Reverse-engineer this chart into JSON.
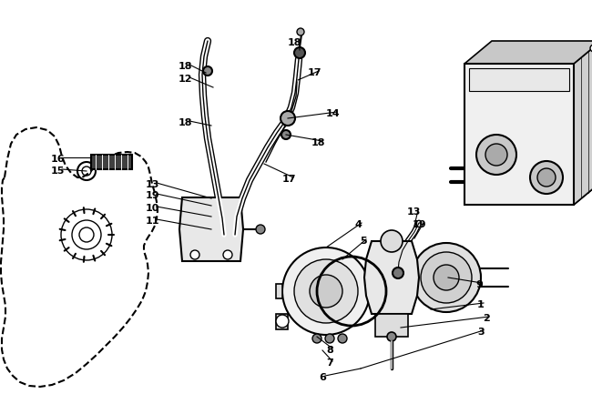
{
  "bg_color": "#ffffff",
  "line_color": "#000000",
  "label_color": "#000000",
  "figsize": [
    6.5,
    4.55
  ],
  "dpi": 100,
  "font_size": 8,
  "font_weight": "bold"
}
